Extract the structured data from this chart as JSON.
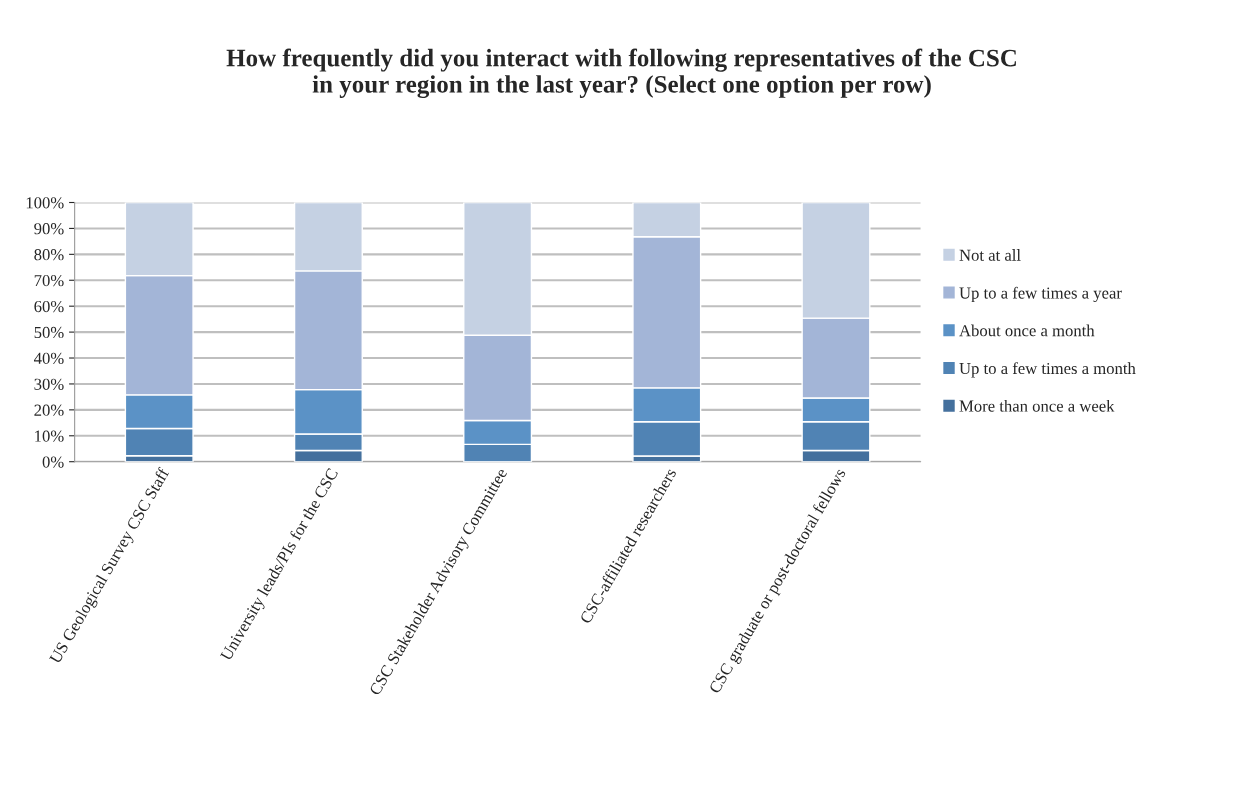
{
  "chart_data": {
    "type": "bar",
    "stacked": true,
    "title": "How frequently did you interact with following representatives of the CSC\nin your region in the last year? (Select one option per row)",
    "categories": [
      "US Geological Survey CSC Staff",
      "University leads/PIs for the CSC",
      "CSC Stakeholder Advisory Committee",
      "CSC-affiliated researchers",
      "CSC graduate or post-doctoral fellows"
    ],
    "series": [
      {
        "name": "More than once a week",
        "color": "#44709d",
        "values": [
          2.3,
          4.3,
          0,
          2.2,
          4.3
        ]
      },
      {
        "name": "Up to a few times a month",
        "color": "#5083b4",
        "values": [
          10.5,
          6.4,
          6.7,
          13.2,
          11.1
        ]
      },
      {
        "name": "About once a month",
        "color": "#5b92c6",
        "values": [
          13,
          17.1,
          9.2,
          13.1,
          9.2
        ]
      },
      {
        "name": "Up to a few times a year",
        "color": "#a3b5d7",
        "values": [
          46,
          45.8,
          32.9,
          58.3,
          30.8
        ]
      },
      {
        "name": "Not at all",
        "color": "#c5d1e3",
        "values": [
          28.2,
          26.4,
          51.2,
          13.2,
          44.6
        ]
      }
    ],
    "ylim": [
      0,
      100
    ],
    "yticks": [
      {
        "value": 0,
        "label": "0%"
      },
      {
        "value": 10,
        "label": "10%"
      },
      {
        "value": 20,
        "label": "20%"
      },
      {
        "value": 30,
        "label": "30%"
      },
      {
        "value": 40,
        "label": "40%"
      },
      {
        "value": 50,
        "label": "50%"
      },
      {
        "value": 60,
        "label": "60%"
      },
      {
        "value": 70,
        "label": "70%"
      },
      {
        "value": 80,
        "label": "80%"
      },
      {
        "value": 90,
        "label": "90%"
      },
      {
        "value": 100,
        "label": "100%"
      }
    ],
    "grid": "y",
    "legend": "right"
  }
}
